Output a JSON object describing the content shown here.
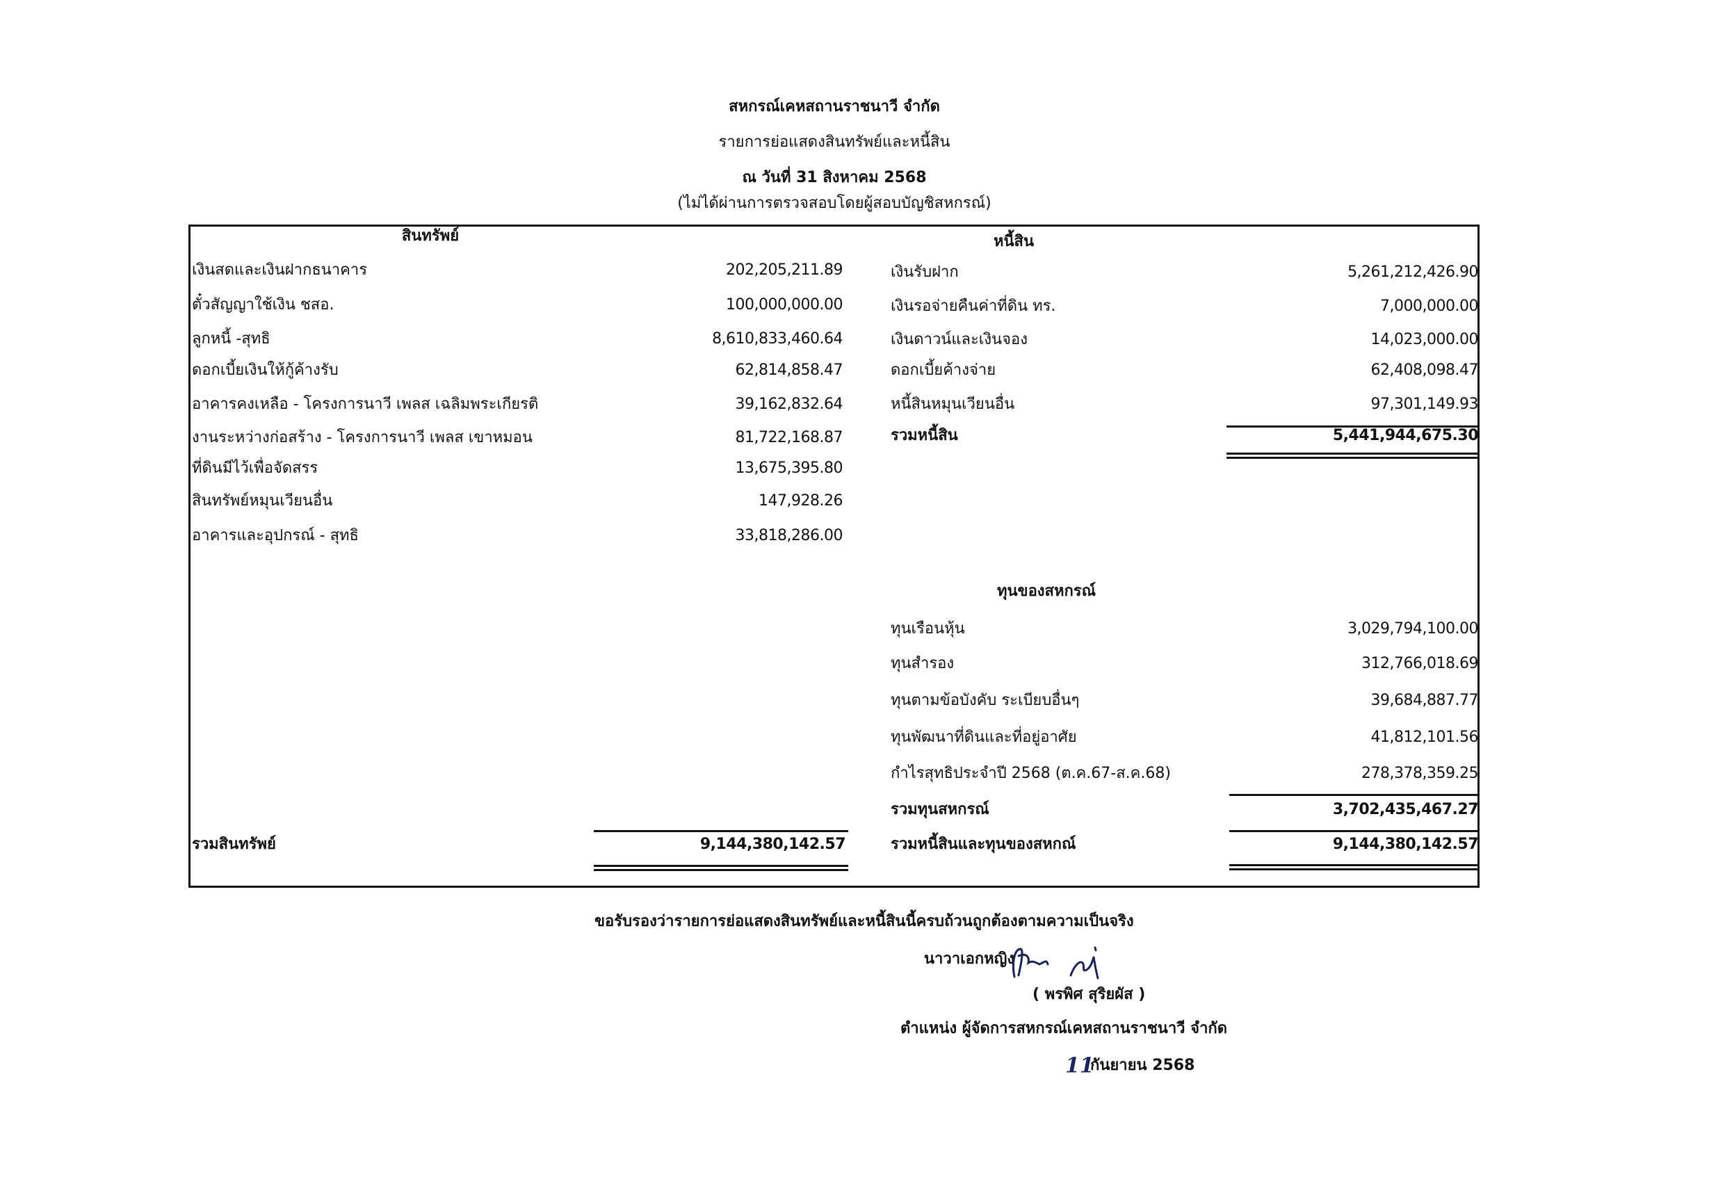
{
  "header": {
    "organization": "สหกรณ์เคหสถานราชนาวี จำกัด",
    "title": "รายการย่อแสดงสินทรัพย์และหนี้สิน",
    "date": "ณ วันที่ 31 สิงหาคม 2568",
    "note": "(ไม่ได้ผ่านการตรวจสอบโดยผู้สอบบัญชิสหกรณ์)"
  },
  "assets": {
    "heading": "สินทรัพย์",
    "items": [
      {
        "label": "เงินสดและเงินฝากธนาคาร",
        "amount": "202,205,211.89"
      },
      {
        "label": "ตั๋วสัญญาใช้เงิน ชสอ.",
        "amount": "100,000,000.00"
      },
      {
        "label": "ลูกหนี้ -สุทธิ",
        "amount": "8,610,833,460.64"
      },
      {
        "label": "ดอกเบี้ยเงินให้กู้ค้างรับ",
        "amount": "62,814,858.47"
      },
      {
        "label": "อาคารคงเหลือ - โครงการนาวี เพลส เฉลิมพระเกียรติ",
        "amount": "39,162,832.64"
      },
      {
        "label": "งานระหว่างก่อสร้าง - โครงการนาวี เพลส เขาหมอน",
        "amount": "81,722,168.87"
      },
      {
        "label": "ที่ดินมีไว้เพื่อจัดสรร",
        "amount": "13,675,395.80"
      },
      {
        "label": "สินทรัพย์หมุนเวียนอื่น",
        "amount": "147,928.26"
      },
      {
        "label": "อาคารและอุปกรณ์ - สุทธิ",
        "amount": "33,818,286.00"
      }
    ],
    "total_label": "รวมสินทรัพย์",
    "total_amount": "9,144,380,142.57"
  },
  "liabilities": {
    "heading": "หนี้สิน",
    "items": [
      {
        "label": "เงินรับฝาก",
        "amount": "5,261,212,426.90"
      },
      {
        "label": "เงินรอจ่ายคืนค่าที่ดิน ทร.",
        "amount": "7,000,000.00"
      },
      {
        "label": "เงินดาวน์และเงินจอง",
        "amount": "14,023,000.00"
      },
      {
        "label": "ดอกเบี้ยค้างจ่าย",
        "amount": "62,408,098.47"
      },
      {
        "label": "หนี้สินหมุนเวียนอื่น",
        "amount": "97,301,149.93"
      }
    ],
    "total_label": "รวมหนี้สิน",
    "total_amount": "5,441,944,675.30"
  },
  "equity": {
    "heading": "ทุนของสหกรณ์",
    "items": [
      {
        "label": "ทุนเรือนหุ้น",
        "amount": "3,029,794,100.00"
      },
      {
        "label": "ทุนสำรอง",
        "amount": "312,766,018.69"
      },
      {
        "label": "ทุนตามข้อบังคับ ระเบียบอื่นๆ",
        "amount": "39,684,887.77"
      },
      {
        "label": "ทุนพัฒนาที่ดินและที่อยู่อาศัย",
        "amount": "41,812,101.56"
      },
      {
        "label": "กำไรสุทธิประจำปี 2568 (ต.ค.67-ส.ค.68)",
        "amount": "278,378,359.25"
      }
    ],
    "total_label": "รวมทุนสหกรณ์",
    "total_amount": "3,702,435,467.27"
  },
  "grand_total": {
    "label": "รวมหนี้สินและทุนของสหกณ์",
    "amount": "9,144,380,142.57"
  },
  "footer": {
    "certification": "ขอรับรองว่ารายการย่อแสดงสินทรัพย์และหนี้สินนี้ครบถ้วนถูกต้องตามความเป็นจริง",
    "rank": "นาวาเอกหญิง",
    "name": "( พรพิศ  สุริยผัส )",
    "position": "ตำแหน่ง ผู้จัดการสหกรณ์เคหสถานราชนาวี จำกัด",
    "date_day": "11",
    "date_rest": "กันยายน  2568"
  },
  "colors": {
    "ink": "#111111",
    "signature": "#1a2456"
  }
}
